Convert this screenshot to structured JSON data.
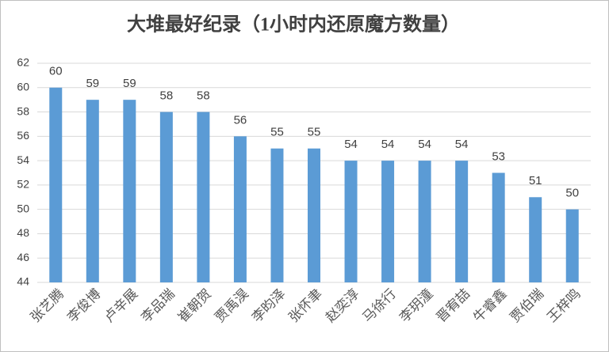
{
  "chart_data": {
    "type": "bar",
    "title": "大堆最好纪录（1小时内还原魔方数量）",
    "categories": [
      "张艺腾",
      "李俊博",
      "卢辛展",
      "李品瑞",
      "崔朝贺",
      "贾禹淏",
      "李昀泽",
      "张怀聿",
      "赵奕淳",
      "马徐行",
      "李玥潼",
      "晋宥喆",
      "牛睿鑫",
      "贾伯瑞",
      "王梓鸣"
    ],
    "values": [
      60,
      59,
      59,
      58,
      58,
      56,
      55,
      55,
      54,
      54,
      54,
      54,
      53,
      51,
      50
    ],
    "color": "#5b9bd5",
    "ylim": [
      44,
      62
    ],
    "yticks": [
      44,
      46,
      48,
      50,
      52,
      54,
      56,
      58,
      60,
      62
    ],
    "grid": true
  }
}
